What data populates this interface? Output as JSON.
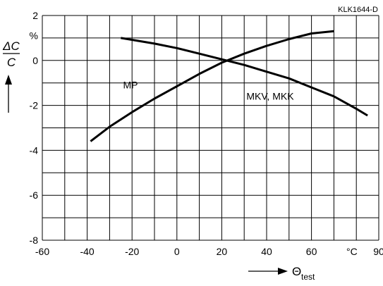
{
  "chart_data": {
    "type": "line",
    "ref_code": "KLK1644-D",
    "x_unit": "°C",
    "y_unit": "%",
    "xlim": [
      -60,
      90
    ],
    "ylim": [
      -8,
      2
    ],
    "x_ticks": [
      -60,
      -40,
      -20,
      0,
      20,
      40,
      60,
      90
    ],
    "x_tick_labels": [
      "-60",
      "-40",
      "-20",
      "0",
      "20",
      "40",
      "60",
      "90"
    ],
    "y_ticks": [
      -8,
      -6,
      -4,
      -2,
      0,
      2
    ],
    "y_tick_labels": [
      "-8",
      "-6",
      "-4",
      "-2",
      "0",
      "2"
    ],
    "x_grid": [
      -60,
      -50,
      -40,
      -30,
      -20,
      -10,
      0,
      10,
      20,
      30,
      40,
      50,
      60,
      70,
      80,
      90
    ],
    "y_grid": [
      -8,
      -7,
      -6,
      -5,
      -4,
      -3,
      -2,
      -1,
      0,
      1,
      2
    ],
    "grid": true,
    "ylabel_numerator": "ΔC",
    "ylabel_denominator": "C",
    "xlabel_symbol": "Θ",
    "xlabel_subscript": "test",
    "series": [
      {
        "name": "MP",
        "x": [
          -38.5,
          -30,
          -20,
          -10,
          0,
          10,
          20,
          30,
          40,
          50,
          60,
          70
        ],
        "y": [
          -3.6,
          -2.95,
          -2.3,
          -1.7,
          -1.15,
          -0.6,
          -0.1,
          0.3,
          0.65,
          0.95,
          1.2,
          1.3
        ]
      },
      {
        "name": "MKV, MKK",
        "x": [
          -25,
          -10,
          0,
          10,
          20,
          30,
          40,
          50,
          60,
          70,
          80,
          85
        ],
        "y": [
          1.0,
          0.75,
          0.55,
          0.3,
          0.05,
          -0.2,
          -0.5,
          -0.8,
          -1.2,
          -1.6,
          -2.15,
          -2.45
        ]
      }
    ]
  }
}
